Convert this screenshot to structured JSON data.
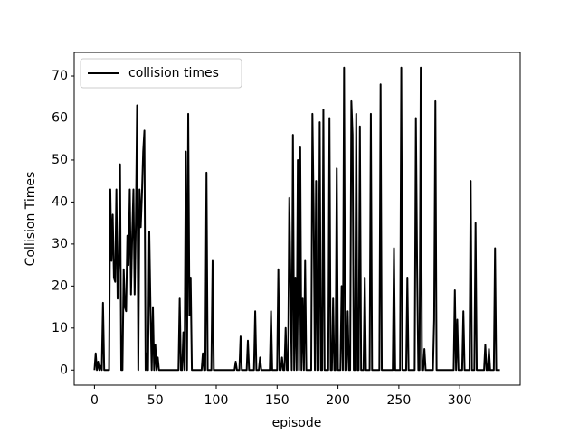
{
  "chart_data": {
    "type": "line",
    "x_label": "episode",
    "y_label": "Collision Times",
    "x": [
      0,
      1,
      2,
      3,
      4,
      5,
      6,
      7,
      8,
      9,
      10,
      11,
      12,
      13,
      14,
      15,
      16,
      17,
      18,
      19,
      20,
      21,
      22,
      23,
      24,
      25,
      26,
      27,
      28,
      29,
      30,
      31,
      32,
      33,
      34,
      35,
      36,
      37,
      38,
      39,
      40,
      41,
      42,
      43,
      44,
      45,
      46,
      47,
      48,
      49,
      50,
      51,
      52,
      53,
      54,
      55,
      56,
      57,
      58,
      59,
      60,
      61,
      62,
      63,
      64,
      65,
      66,
      67,
      68,
      69,
      70,
      71,
      72,
      73,
      74,
      75,
      76,
      77,
      78,
      79,
      80,
      81,
      82,
      83,
      84,
      85,
      86,
      87,
      88,
      89,
      90,
      91,
      92,
      93,
      94,
      95,
      96,
      97,
      98,
      99,
      100,
      101,
      102,
      103,
      104,
      105,
      106,
      107,
      108,
      109,
      110,
      111,
      112,
      113,
      114,
      115,
      116,
      117,
      118,
      119,
      120,
      121,
      122,
      123,
      124,
      125,
      126,
      127,
      128,
      129,
      130,
      131,
      132,
      133,
      134,
      135,
      136,
      137,
      138,
      139,
      140,
      141,
      142,
      143,
      144,
      145,
      146,
      147,
      148,
      149,
      150,
      151,
      152,
      153,
      154,
      155,
      156,
      157,
      158,
      159,
      160,
      161,
      162,
      163,
      164,
      165,
      166,
      167,
      168,
      169,
      170,
      171,
      172,
      173,
      174,
      175,
      176,
      177,
      178,
      179,
      180,
      181,
      182,
      183,
      184,
      185,
      186,
      187,
      188,
      189,
      190,
      191,
      192,
      193,
      194,
      195,
      196,
      197,
      198,
      199,
      200,
      201,
      202,
      203,
      204,
      205,
      206,
      207,
      208,
      209,
      210,
      211,
      212,
      213,
      214,
      215,
      216,
      217,
      218,
      219,
      220,
      221,
      222,
      223,
      224,
      225,
      226,
      227,
      228,
      229,
      230,
      231,
      232,
      233,
      234,
      235,
      236,
      237,
      238,
      239,
      240,
      241,
      242,
      243,
      244,
      245,
      246,
      247,
      248,
      249,
      250,
      251,
      252,
      253,
      254,
      255,
      256,
      257,
      258,
      259,
      260,
      261,
      262,
      263,
      264,
      265,
      266,
      267,
      268,
      269,
      270,
      271,
      272,
      273,
      274,
      275,
      276,
      277,
      278,
      279,
      280,
      281,
      282,
      283,
      284,
      285,
      286,
      287,
      288,
      289,
      290,
      291,
      292,
      293,
      294,
      295,
      296,
      297,
      298,
      299,
      300,
      301,
      302,
      303,
      304,
      305,
      306,
      307,
      308,
      309,
      310,
      311,
      312,
      313,
      314,
      315,
      316,
      317,
      318,
      319,
      320,
      321,
      322,
      323,
      324,
      325,
      326,
      327,
      328,
      329,
      330,
      331,
      332,
      333
    ],
    "series": [
      {
        "name": "collision times",
        "color": "#000000",
        "values": [
          0,
          4,
          0,
          2,
          0,
          1,
          0,
          16,
          0,
          0,
          0,
          0,
          0,
          43,
          26,
          37,
          22,
          21,
          43,
          17,
          25,
          49,
          0,
          0,
          24,
          15,
          14,
          32,
          25,
          43,
          18,
          32,
          43,
          18,
          35,
          63,
          0,
          43,
          34,
          42,
          52,
          57,
          0,
          4,
          0,
          33,
          15,
          0,
          15,
          0,
          6,
          0,
          3,
          0,
          0,
          0,
          0,
          0,
          0,
          0,
          0,
          0,
          0,
          0,
          0,
          0,
          0,
          0,
          0,
          0,
          17,
          0,
          0,
          9,
          0,
          52,
          0,
          61,
          13,
          22,
          0,
          0,
          0,
          0,
          0,
          0,
          0,
          0,
          0,
          4,
          0,
          0,
          47,
          0,
          0,
          0,
          0,
          26,
          0,
          0,
          0,
          0,
          0,
          0,
          0,
          0,
          0,
          0,
          0,
          0,
          0,
          0,
          0,
          0,
          0,
          0,
          2,
          0,
          0,
          0,
          8,
          0,
          0,
          0,
          0,
          0,
          7,
          0,
          0,
          0,
          0,
          0,
          14,
          0,
          0,
          0,
          3,
          0,
          0,
          0,
          0,
          0,
          0,
          0,
          0,
          14,
          0,
          0,
          0,
          0,
          0,
          24,
          0,
          0,
          3,
          0,
          0,
          10,
          0,
          0,
          41,
          21,
          0,
          56,
          0,
          22,
          0,
          50,
          0,
          53,
          0,
          17,
          0,
          26,
          0,
          0,
          0,
          0,
          0,
          61,
          38,
          0,
          45,
          0,
          0,
          59,
          0,
          0,
          62,
          0,
          0,
          0,
          0,
          60,
          0,
          0,
          17,
          0,
          0,
          48,
          0,
          0,
          0,
          20,
          0,
          72,
          0,
          0,
          14,
          0,
          0,
          64,
          56,
          0,
          0,
          61,
          0,
          0,
          58,
          0,
          0,
          0,
          22,
          0,
          0,
          0,
          0,
          61,
          0,
          0,
          0,
          0,
          0,
          0,
          0,
          68,
          0,
          0,
          0,
          0,
          0,
          0,
          0,
          0,
          0,
          0,
          29,
          0,
          0,
          0,
          0,
          0,
          72,
          0,
          0,
          0,
          0,
          22,
          0,
          0,
          0,
          0,
          0,
          0,
          60,
          25,
          0,
          0,
          72,
          0,
          0,
          5,
          0,
          0,
          0,
          0,
          0,
          0,
          0,
          12,
          64,
          0,
          0,
          0,
          0,
          0,
          0,
          0,
          0,
          0,
          0,
          0,
          0,
          0,
          0,
          0,
          19,
          0,
          12,
          0,
          0,
          0,
          0,
          14,
          0,
          0,
          0,
          0,
          0,
          45,
          0,
          0,
          0,
          35,
          0,
          0,
          0,
          0,
          0,
          0,
          0,
          6,
          0,
          0,
          5,
          0,
          0,
          0,
          0,
          29,
          0,
          0,
          0,
          0
        ]
      }
    ],
    "xlim": [
      -16.65,
      349.65
    ],
    "xticks": [
      0,
      50,
      100,
      150,
      200,
      250,
      300
    ],
    "ylim": [
      -3.6,
      75.6
    ],
    "yticks": [
      0,
      10,
      20,
      30,
      40,
      50,
      60,
      70
    ],
    "legend": "upper left"
  }
}
